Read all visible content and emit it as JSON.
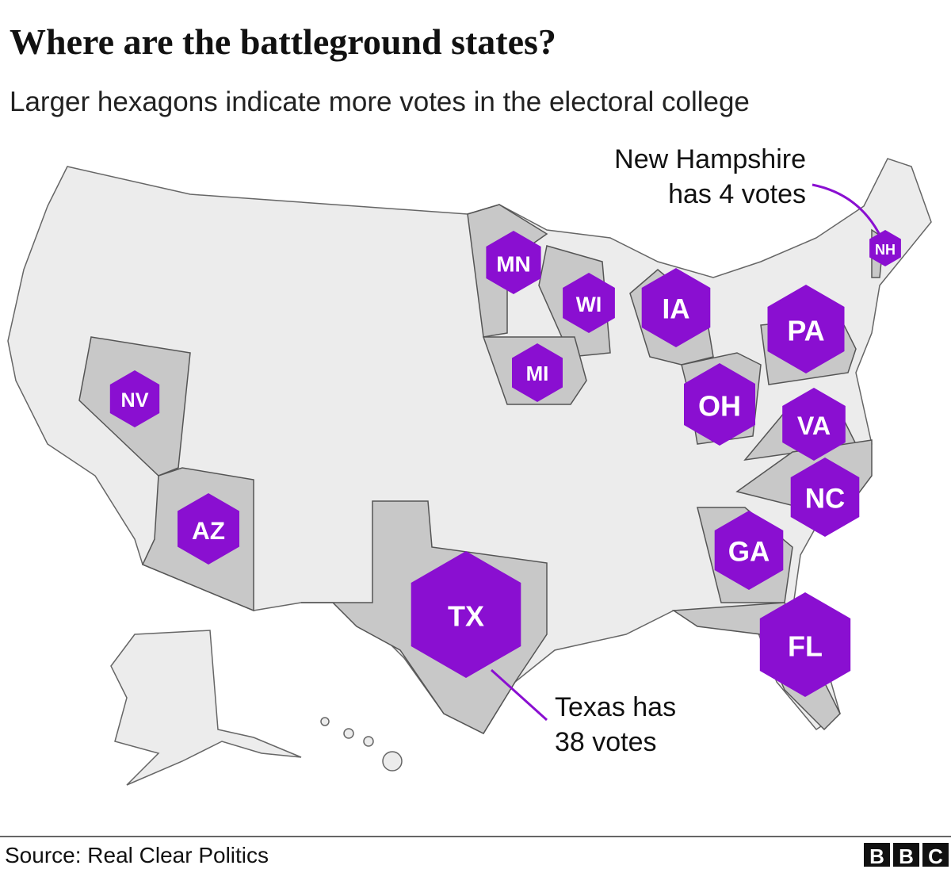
{
  "header": {
    "title": "Where are the battleground states?",
    "subtitle": "Larger hexagons indicate more votes in the electoral college"
  },
  "states": [
    {
      "label": "NV"
    },
    {
      "label": "AZ"
    },
    {
      "label": "TX"
    },
    {
      "label": "MN"
    },
    {
      "label": "WI"
    },
    {
      "label": "IA"
    },
    {
      "label": "MI"
    },
    {
      "label": "OH"
    },
    {
      "label": "PA"
    },
    {
      "label": "VA"
    },
    {
      "label": "NC"
    },
    {
      "label": "GA"
    },
    {
      "label": "FL"
    },
    {
      "label": "NH"
    }
  ],
  "annotations": [
    {
      "lines": [
        "New Hampshire",
        "has 4 votes"
      ]
    },
    {
      "lines": [
        "Texas has",
        "38 votes"
      ]
    }
  ],
  "footer": {
    "source": "Source: Real Clear Politics",
    "logo": [
      "B",
      "B",
      "C"
    ]
  }
}
